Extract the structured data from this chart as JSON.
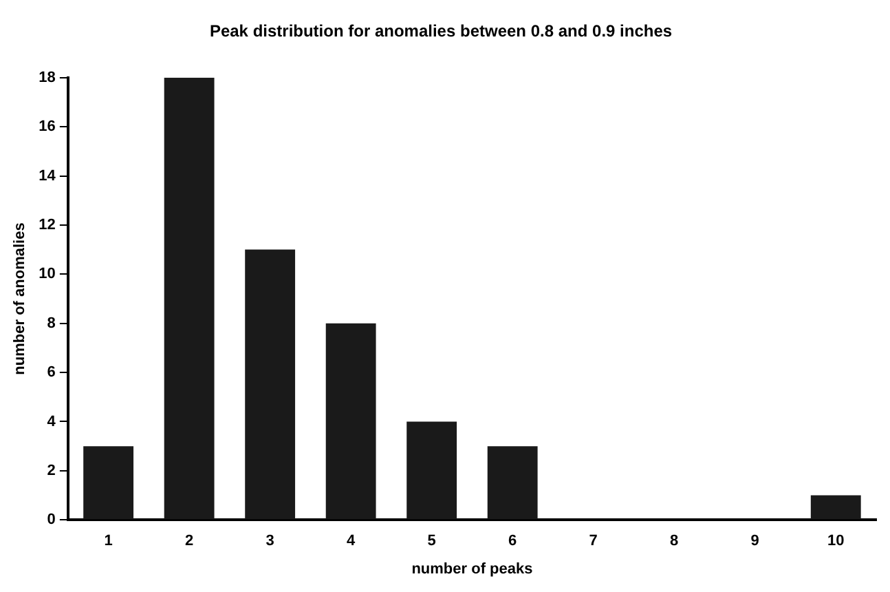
{
  "chart_data": {
    "type": "bar",
    "title": "Peak distribution for anomalies between 0.8 and 0.9 inches",
    "xlabel": "number of peaks",
    "ylabel": "number of anomalies",
    "categories": [
      "1",
      "2",
      "3",
      "4",
      "5",
      "6",
      "7",
      "8",
      "9",
      "10"
    ],
    "values": [
      3,
      18,
      11,
      8,
      4,
      3,
      0,
      0,
      0,
      1
    ],
    "color": "#1a1a1a",
    "ylim": [
      0,
      18
    ],
    "yticks": [
      0,
      2,
      4,
      6,
      8,
      10,
      12,
      14,
      16,
      18
    ],
    "grid": false,
    "legend": false
  }
}
